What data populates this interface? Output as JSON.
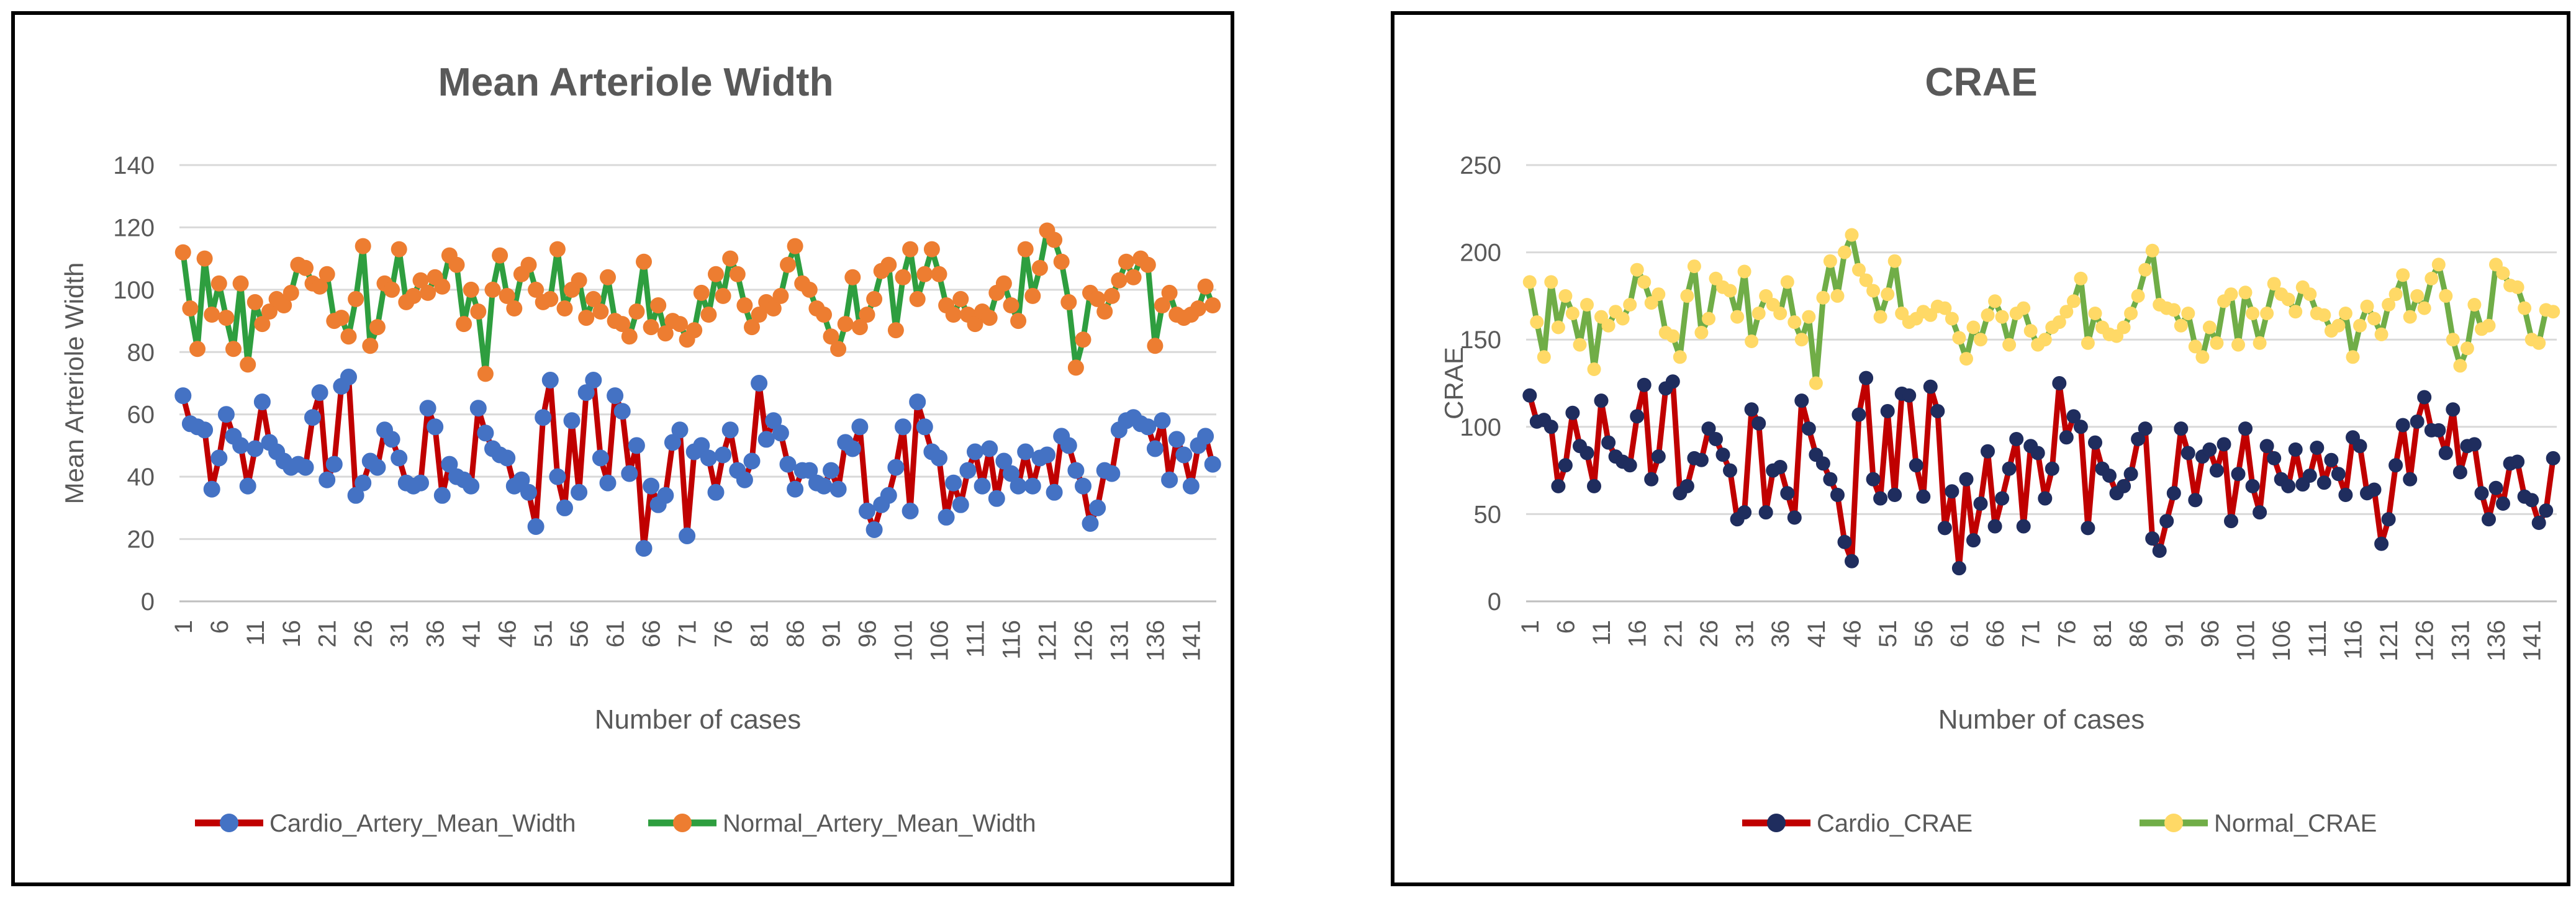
{
  "charts": [
    {
      "chart_data": {
        "type": "line",
        "title": "Mean Arteriole Width",
        "xlabel": "Number of cases",
        "ylabel": "Mean Arteriole Width",
        "ylim": [
          0,
          140
        ],
        "yticks": [
          0,
          20,
          40,
          60,
          80,
          100,
          120,
          140
        ],
        "xtick_labels": [
          "1",
          "6",
          "11",
          "16",
          "21",
          "26",
          "31",
          "36",
          "41",
          "46",
          "51",
          "56",
          "61",
          "66",
          "71",
          "76",
          "81",
          "86",
          "91",
          "96",
          "101",
          "106",
          "111",
          "116",
          "121",
          "126",
          "131",
          "136",
          "141"
        ],
        "n_points": 144,
        "grid": true,
        "legend_position": "bottom",
        "series": [
          {
            "name": "Cardio_Artery_Mean_Width",
            "line_color": "#c00000",
            "marker_color": "#4472c4",
            "values": [
              66,
              57,
              56,
              55,
              36,
              46,
              60,
              53,
              50,
              37,
              49,
              64,
              51,
              48,
              45,
              43,
              44,
              43,
              59,
              67,
              39,
              44,
              69,
              72,
              34,
              38,
              45,
              43,
              55,
              52,
              46,
              38,
              37,
              38,
              62,
              56,
              34,
              44,
              40,
              39,
              37,
              62,
              54,
              49,
              47,
              46,
              37,
              39,
              35,
              24,
              59,
              71,
              40,
              30,
              58,
              35,
              67,
              71,
              46,
              38,
              66,
              61,
              41,
              50,
              17,
              37,
              31,
              34,
              51,
              55,
              21,
              48,
              50,
              46,
              35,
              47,
              55,
              42,
              39,
              45,
              70,
              52,
              58,
              54,
              44,
              36,
              42,
              42,
              38,
              37,
              42,
              36,
              51,
              49,
              56,
              29,
              23,
              31,
              34,
              43,
              56,
              29,
              64,
              56,
              48,
              46,
              27,
              38,
              31,
              42,
              48,
              37,
              49,
              33,
              45,
              41,
              37,
              48,
              37,
              46,
              47,
              35,
              53,
              50,
              42,
              37,
              25,
              30,
              42,
              41,
              55,
              58,
              59,
              57,
              56,
              49,
              58,
              39,
              52,
              47,
              37,
              50,
              53,
              44
            ]
          },
          {
            "name": "Normal_Artery_Mean_Width",
            "line_color": "#2e9e3f",
            "marker_color": "#ed7d31",
            "values": [
              112,
              94,
              81,
              110,
              92,
              102,
              91,
              81,
              102,
              76,
              96,
              89,
              93,
              97,
              95,
              99,
              108,
              107,
              102,
              101,
              105,
              90,
              91,
              85,
              97,
              114,
              82,
              88,
              102,
              100,
              113,
              96,
              98,
              103,
              99,
              104,
              101,
              111,
              108,
              89,
              100,
              93,
              73,
              100,
              111,
              98,
              94,
              105,
              108,
              100,
              96,
              97,
              113,
              94,
              100,
              103,
              91,
              97,
              93,
              104,
              90,
              89,
              85,
              93,
              109,
              88,
              95,
              86,
              90,
              89,
              84,
              87,
              99,
              92,
              105,
              98,
              110,
              105,
              95,
              88,
              92,
              96,
              94,
              98,
              108,
              114,
              102,
              100,
              94,
              92,
              85,
              81,
              89,
              104,
              88,
              92,
              97,
              106,
              108,
              87,
              104,
              113,
              97,
              105,
              113,
              105,
              95,
              92,
              97,
              92,
              89,
              93,
              91,
              99,
              102,
              95,
              90,
              113,
              98,
              107,
              119,
              116,
              109,
              96,
              75,
              84,
              99,
              97,
              93,
              98,
              103,
              109,
              104,
              110,
              108,
              82,
              95,
              99,
              92,
              91,
              92,
              94,
              101,
              95
            ]
          }
        ]
      }
    },
    {
      "chart_data": {
        "type": "line",
        "title": "CRAE",
        "xlabel": "Number of cases",
        "ylabel": "CRAE",
        "ylim": [
          0,
          250
        ],
        "yticks": [
          0,
          50,
          100,
          150,
          200,
          250
        ],
        "xtick_labels": [
          "1",
          "6",
          "11",
          "16",
          "21",
          "26",
          "31",
          "36",
          "41",
          "46",
          "51",
          "56",
          "61",
          "66",
          "71",
          "76",
          "81",
          "86",
          "91",
          "96",
          "101",
          "106",
          "111",
          "116",
          "121",
          "126",
          "131",
          "136",
          "141"
        ],
        "n_points": 144,
        "grid": true,
        "legend_position": "bottom",
        "series": [
          {
            "name": "Cardio_CRAE",
            "line_color": "#c00000",
            "marker_color": "#1f2d5e",
            "values": [
              118,
              103,
              104,
              100,
              66,
              78,
              108,
              89,
              85,
              66,
              115,
              91,
              83,
              80,
              78,
              106,
              124,
              70,
              83,
              122,
              126,
              62,
              66,
              82,
              81,
              99,
              93,
              84,
              75,
              47,
              51,
              110,
              102,
              51,
              75,
              77,
              62,
              48,
              115,
              99,
              84,
              79,
              70,
              61,
              34,
              23,
              107,
              128,
              70,
              59,
              109,
              61,
              119,
              118,
              78,
              60,
              123,
              109,
              42,
              63,
              19,
              70,
              35,
              56,
              86,
              43,
              59,
              76,
              93,
              43,
              89,
              85,
              59,
              76,
              125,
              94,
              106,
              100,
              42,
              91,
              76,
              72,
              62,
              66,
              73,
              93,
              99,
              36,
              29,
              46,
              62,
              99,
              85,
              58,
              83,
              87,
              75,
              90,
              46,
              73,
              99,
              66,
              51,
              89,
              82,
              70,
              66,
              87,
              67,
              72,
              88,
              68,
              81,
              73,
              61,
              94,
              89,
              62,
              64,
              33,
              47,
              78,
              101,
              70,
              103,
              117,
              98,
              98,
              85,
              110,
              74,
              89,
              90,
              62,
              47,
              65,
              56,
              79,
              80,
              60,
              58,
              45,
              52,
              82
            ]
          },
          {
            "name": "Normal_CRAE",
            "line_color": "#70ad47",
            "marker_color": "#ffd966",
            "values": [
              183,
              160,
              140,
              183,
              157,
              175,
              165,
              147,
              170,
              133,
              163,
              158,
              166,
              162,
              170,
              190,
              183,
              171,
              176,
              154,
              152,
              140,
              175,
              192,
              154,
              162,
              185,
              180,
              178,
              163,
              189,
              149,
              165,
              175,
              170,
              165,
              183,
              160,
              150,
              163,
              125,
              174,
              195,
              175,
              200,
              210,
              190,
              184,
              178,
              163,
              176,
              195,
              165,
              160,
              162,
              166,
              164,
              169,
              168,
              162,
              151,
              139,
              157,
              150,
              164,
              172,
              163,
              147,
              165,
              168,
              155,
              147,
              150,
              157,
              160,
              166,
              172,
              185,
              148,
              165,
              157,
              153,
              152,
              157,
              165,
              175,
              190,
              201,
              170,
              168,
              167,
              158,
              165,
              146,
              140,
              157,
              148,
              172,
              176,
              147,
              177,
              165,
              148,
              165,
              182,
              176,
              173,
              166,
              180,
              176,
              165,
              164,
              155,
              158,
              165,
              140,
              158,
              169,
              162,
              153,
              170,
              176,
              187,
              163,
              175,
              168,
              185,
              193,
              175,
              150,
              135,
              145,
              170,
              156,
              158,
              193,
              188,
              181,
              180,
              168,
              150,
              148,
              167,
              166
            ]
          }
        ]
      }
    }
  ]
}
